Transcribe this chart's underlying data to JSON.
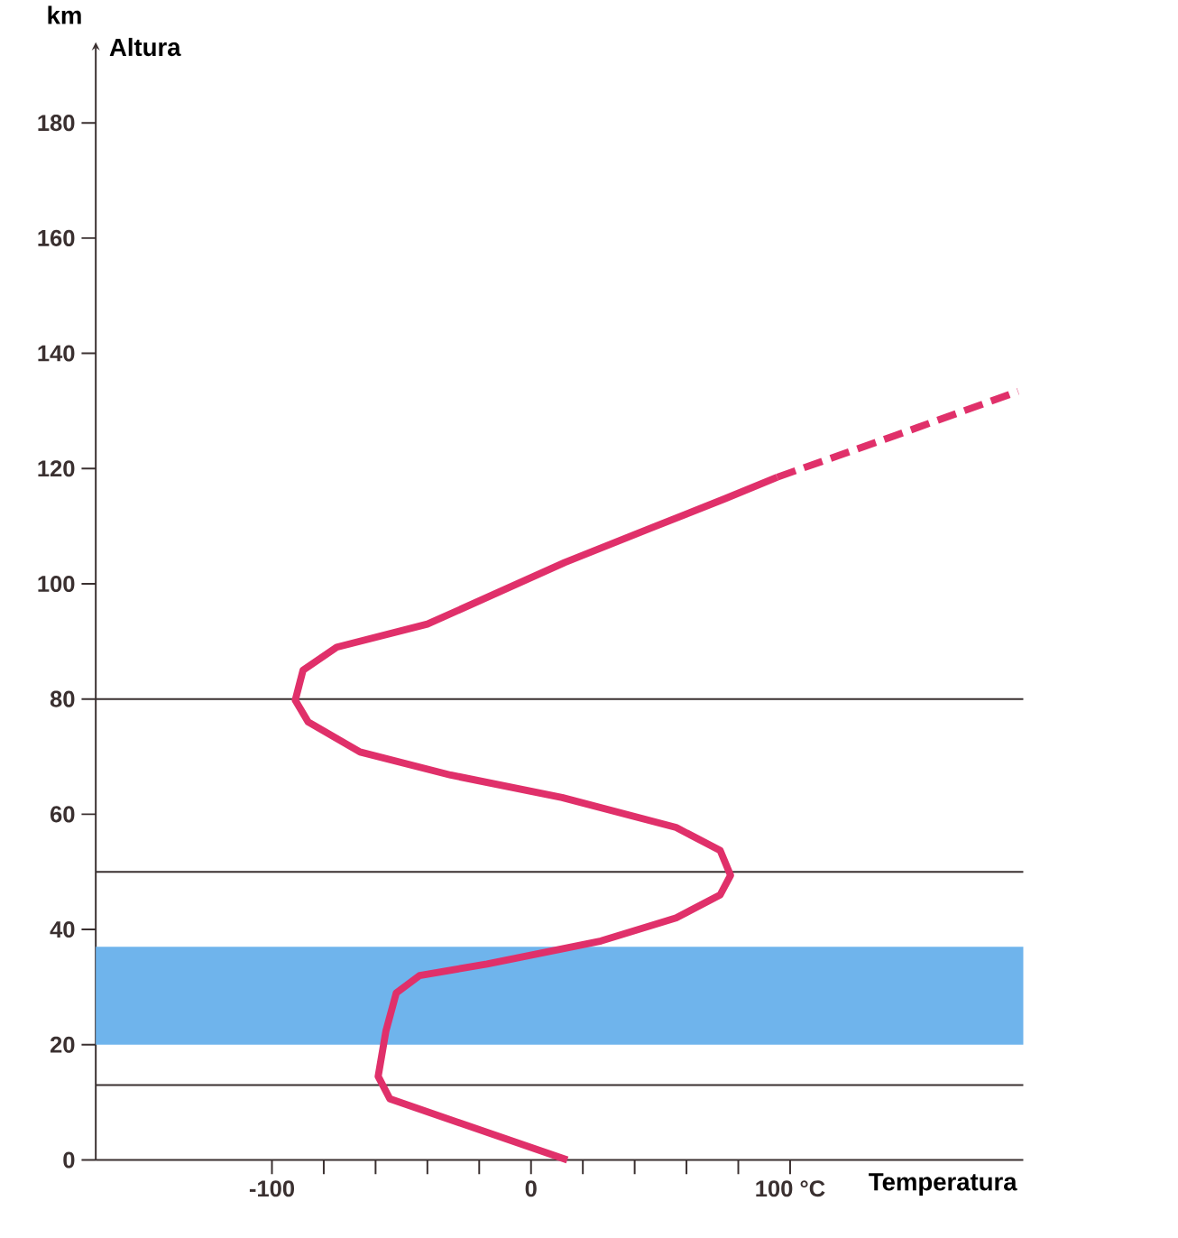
{
  "chart_data": {
    "type": "line",
    "xlabel": "Temperatura",
    "ylabel": "Altura",
    "annotations": [
      "km"
    ],
    "xlim": [
      -168,
      190
    ],
    "ylim": [
      0,
      194
    ],
    "xticks": [
      -100,
      {
        "value": -80,
        "label": null
      },
      {
        "value": -60,
        "label": null
      },
      {
        "value": -40,
        "label": null
      },
      {
        "value": -20,
        "label": null
      },
      0,
      {
        "value": 20,
        "label": null
      },
      {
        "value": 40,
        "label": null
      },
      {
        "value": 60,
        "label": null
      },
      {
        "value": 80,
        "label": null
      },
      {
        "value": 100,
        "label": "100 °C"
      }
    ],
    "yticks": [
      0,
      20,
      40,
      60,
      80,
      100,
      120,
      140,
      160,
      180
    ],
    "series": [
      {
        "color": "#e0306a",
        "line_style": "solid",
        "x": [
          14,
          -54.5,
          -59,
          -56,
          -52,
          -43,
          -17,
          27,
          56,
          73,
          77,
          73,
          56,
          12,
          -31,
          -66,
          -86,
          -91,
          -88,
          -75,
          -40,
          13,
          47,
          75,
          95
        ],
        "values": [
          0,
          10.6,
          14.5,
          22.4,
          29,
          32,
          34,
          38,
          42,
          46,
          49.4,
          53.7,
          57.7,
          62.9,
          66.8,
          70.8,
          76,
          79.8,
          85,
          89,
          93,
          103.7,
          109.8,
          114.8,
          118.5
        ]
      },
      {
        "color": "#e0306a",
        "line_style": "dashed",
        "x": [
          95,
          141,
          188
        ],
        "values": [
          118.5,
          125.8,
          133.4
        ]
      }
    ],
    "ref_lines": [
      {
        "axis": "y",
        "value": 13,
        "color": "#3a3030"
      },
      {
        "axis": "y",
        "value": 50,
        "color": "#3a3030"
      },
      {
        "axis": "y",
        "value": 80,
        "color": "#3a3030"
      }
    ],
    "bands": [
      {
        "axis": "y",
        "from": 20,
        "to": 37,
        "color": "#6fb4ec"
      }
    ]
  }
}
